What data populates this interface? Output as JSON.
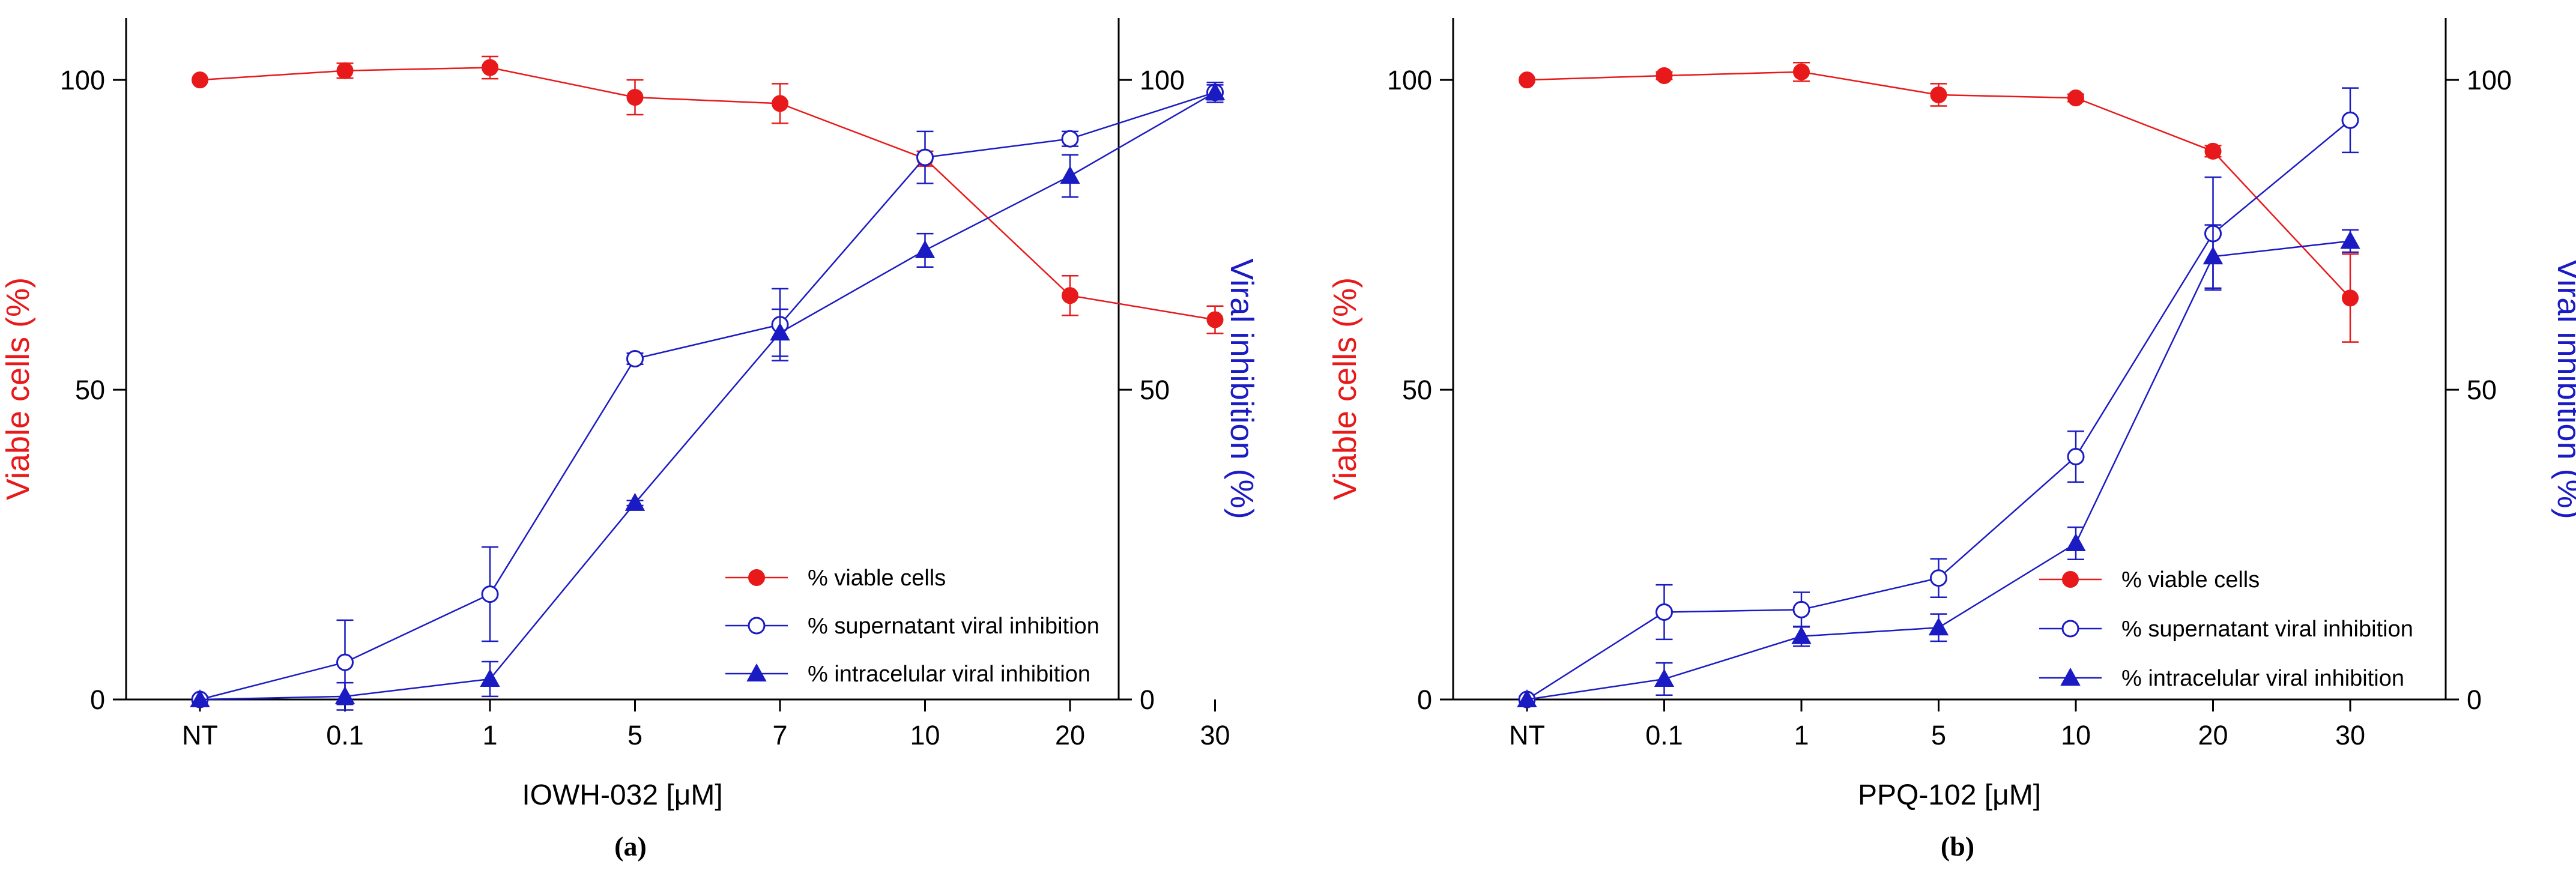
{
  "chart_data": [
    {
      "type": "line",
      "panel_label": "(a)",
      "xlabel": "IOWH-032 [μM]",
      "ylabel_left": "Viable cells (%)",
      "ylabel_right": "Viral inhibition (%)",
      "categories": [
        "NT",
        "0.1",
        "1",
        "5",
        "7",
        "10",
        "20",
        "30"
      ],
      "ylim_left": [
        0,
        110
      ],
      "ylim_right": [
        0,
        110
      ],
      "yticks": [
        "0",
        "50",
        "100"
      ],
      "grid": false,
      "legend_position": "bottom-right",
      "series": [
        {
          "name": "% viable cells",
          "axis": "left",
          "marker": "filled-circle",
          "color": "#e8191a",
          "values": [
            100,
            101.5,
            102,
            97.2,
            96.2,
            87.3,
            65.2,
            61.3
          ],
          "errors": [
            0,
            1.2,
            1.8,
            2.8,
            3.2,
            1.2,
            3.2,
            2.2
          ]
        },
        {
          "name": "% supernatant viral inhibition",
          "axis": "right",
          "marker": "open-circle",
          "color": "#1b1bc4",
          "values": [
            0,
            6,
            17,
            55,
            60.5,
            87.5,
            90.5,
            98
          ],
          "errors": [
            0,
            6.8,
            7.6,
            0.9,
            5.8,
            4.2,
            1.2,
            1.6
          ]
        },
        {
          "name": "% intracelular viral inhibition",
          "axis": "right",
          "marker": "filled-triangle",
          "color": "#1b1bc4",
          "values": [
            0,
            0.5,
            3.3,
            31.7,
            59.2,
            72.5,
            84.5,
            98
          ],
          "errors": [
            0,
            2.2,
            2.8,
            0.4,
            3.8,
            2.7,
            3.4,
            1.2
          ]
        }
      ]
    },
    {
      "type": "line",
      "panel_label": "(b)",
      "xlabel": "PPQ-102 [μM]",
      "ylabel_left": "Viable cells (%)",
      "ylabel_right": "Viral inhibition (%)",
      "categories": [
        "NT",
        "0.1",
        "1",
        "5",
        "10",
        "20",
        "30"
      ],
      "ylim_left": [
        0,
        110
      ],
      "ylim_right": [
        0,
        110
      ],
      "yticks": [
        "0",
        "50",
        "100"
      ],
      "grid": false,
      "legend_position": "bottom-right",
      "series": [
        {
          "name": "% viable cells",
          "axis": "left",
          "marker": "filled-circle",
          "color": "#e8191a",
          "values": [
            100,
            100.7,
            101.3,
            97.6,
            97.1,
            88.5,
            64.8
          ],
          "errors": [
            0,
            0.6,
            1.5,
            1.8,
            0.6,
            0.9,
            7.1
          ]
        },
        {
          "name": "% supernatant viral inhibition",
          "axis": "right",
          "marker": "open-circle",
          "color": "#1b1bc4",
          "values": [
            0,
            14.1,
            14.5,
            19.6,
            39.2,
            75.2,
            93.5
          ],
          "errors": [
            0,
            4.4,
            2.8,
            3.1,
            4.1,
            9.1,
            5.2
          ]
        },
        {
          "name": "% intracelular viral inhibition",
          "axis": "right",
          "marker": "filled-triangle",
          "color": "#1b1bc4",
          "values": [
            0,
            3.3,
            10.2,
            11.6,
            25.2,
            71.5,
            74
          ],
          "errors": [
            0,
            2.6,
            1.6,
            2.2,
            2.6,
            5.1,
            1.8
          ]
        }
      ]
    }
  ]
}
